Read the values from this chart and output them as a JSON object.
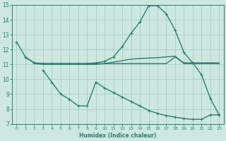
{
  "bg_color": "#cce8e0",
  "grid_color": "#a8cdc8",
  "line_color": "#2e7d6e",
  "linewidth": 1.0,
  "markersize": 3.5,
  "xlabel": "Humidex (Indice chaleur)",
  "xlim": [
    -0.5,
    23.5
  ],
  "ylim": [
    7,
    15
  ],
  "yticks": [
    7,
    8,
    9,
    10,
    11,
    12,
    13,
    14,
    15
  ],
  "xticks": [
    0,
    1,
    2,
    3,
    4,
    5,
    6,
    7,
    8,
    9,
    10,
    11,
    12,
    13,
    14,
    15,
    16,
    17,
    18,
    19,
    20,
    21,
    22,
    23
  ],
  "line1_x": [
    0,
    1,
    2,
    3,
    4,
    5,
    6,
    7,
    8,
    9,
    10,
    11,
    12,
    13,
    14,
    15,
    16,
    17,
    18,
    19,
    20,
    21,
    22,
    23
  ],
  "line1_y": [
    12.5,
    11.5,
    11.1,
    11.05,
    11.05,
    11.05,
    11.05,
    11.05,
    11.05,
    11.1,
    11.2,
    11.5,
    12.2,
    13.1,
    13.85,
    14.95,
    14.95,
    14.4,
    13.3,
    11.8,
    11.1,
    10.3,
    8.7,
    7.6
  ],
  "line2_x": [
    1,
    2,
    3,
    4,
    5,
    6,
    7,
    8,
    9,
    10,
    11,
    12,
    13,
    14,
    15,
    16,
    17,
    18,
    19,
    20,
    21,
    22,
    23
  ],
  "line2_y": [
    11.45,
    11.1,
    11.05,
    11.05,
    11.05,
    11.05,
    11.05,
    11.05,
    11.05,
    11.05,
    11.05,
    11.05,
    11.05,
    11.05,
    11.05,
    11.05,
    11.05,
    11.5,
    11.1,
    11.1,
    11.1,
    11.1,
    11.1
  ],
  "line3_x": [
    2,
    3,
    4,
    5,
    6,
    7,
    8,
    9,
    10,
    11,
    12,
    13,
    14,
    15,
    16,
    17,
    18,
    19,
    20,
    21,
    22,
    23
  ],
  "line3_y": [
    11.05,
    11.0,
    11.0,
    11.0,
    11.0,
    11.0,
    11.0,
    11.0,
    11.05,
    11.15,
    11.25,
    11.35,
    11.4,
    11.42,
    11.45,
    11.5,
    11.55,
    11.05,
    11.05,
    11.05,
    11.05,
    11.05
  ],
  "line4_x": [
    3,
    4,
    5,
    6,
    7,
    8,
    9,
    10,
    11,
    12,
    13,
    14,
    15,
    16,
    17,
    18,
    19,
    20,
    21,
    22,
    23
  ],
  "line4_y": [
    10.6,
    9.8,
    9.0,
    8.65,
    8.2,
    8.2,
    9.8,
    9.4,
    9.1,
    8.8,
    8.5,
    8.2,
    7.9,
    7.7,
    7.55,
    7.45,
    7.35,
    7.3,
    7.3,
    7.6,
    7.6
  ]
}
